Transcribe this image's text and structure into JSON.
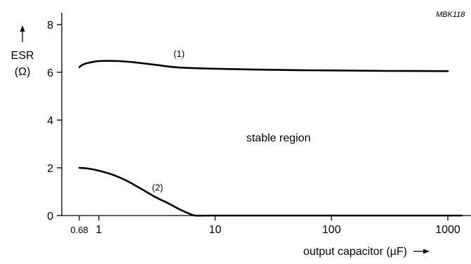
{
  "chart_data": {
    "type": "line",
    "reference_code": "MBK118",
    "xlabel": "output capacitor (µF)",
    "ylabel_top": "ESR",
    "ylabel_bottom": "(Ω)",
    "x_scale": "log",
    "xlim": [
      0.68,
      1000
    ],
    "ylim": [
      0,
      8.5
    ],
    "x_ticks": [
      {
        "value": 0.68,
        "label": "0.68"
      },
      {
        "value": 1,
        "label": "1"
      },
      {
        "value": 10,
        "label": "10"
      },
      {
        "value": 100,
        "label": "100"
      },
      {
        "value": 1000,
        "label": "1000"
      }
    ],
    "y_ticks": [
      {
        "value": 0,
        "label": "0"
      },
      {
        "value": 2,
        "label": "2"
      },
      {
        "value": 4,
        "label": "4"
      },
      {
        "value": 6,
        "label": "6"
      },
      {
        "value": 8,
        "label": "8"
      }
    ],
    "series": [
      {
        "name": "(1)",
        "points": [
          [
            0.68,
            6.22
          ],
          [
            0.75,
            6.35
          ],
          [
            0.9,
            6.44
          ],
          [
            1.0,
            6.47
          ],
          [
            1.2,
            6.48
          ],
          [
            1.5,
            6.47
          ],
          [
            2.0,
            6.42
          ],
          [
            3.0,
            6.32
          ],
          [
            4.0,
            6.24
          ],
          [
            5.0,
            6.2
          ],
          [
            7.0,
            6.17
          ],
          [
            10,
            6.15
          ],
          [
            20,
            6.12
          ],
          [
            50,
            6.09
          ],
          [
            100,
            6.08
          ],
          [
            300,
            6.06
          ],
          [
            1000,
            6.05
          ]
        ]
      },
      {
        "name": "(2)",
        "points": [
          [
            0.68,
            2.0
          ],
          [
            0.8,
            1.97
          ],
          [
            1.0,
            1.88
          ],
          [
            1.3,
            1.72
          ],
          [
            1.7,
            1.48
          ],
          [
            2.2,
            1.18
          ],
          [
            3.0,
            0.8
          ],
          [
            4.0,
            0.5
          ],
          [
            5.0,
            0.25
          ],
          [
            6.0,
            0.08
          ],
          [
            6.8,
            0.0
          ],
          [
            10,
            0.0
          ],
          [
            100,
            0.0
          ],
          [
            1000,
            0.0
          ],
          [
            1300,
            0.0
          ]
        ]
      }
    ],
    "annotations": [
      {
        "text": "(1)",
        "x": 4.9,
        "y": 6.65
      },
      {
        "text": "(2)",
        "x": 3.2,
        "y": 1.05
      },
      {
        "text": "stable region",
        "x": 35,
        "y": 3.1
      }
    ],
    "grid": false,
    "legend": "none"
  }
}
